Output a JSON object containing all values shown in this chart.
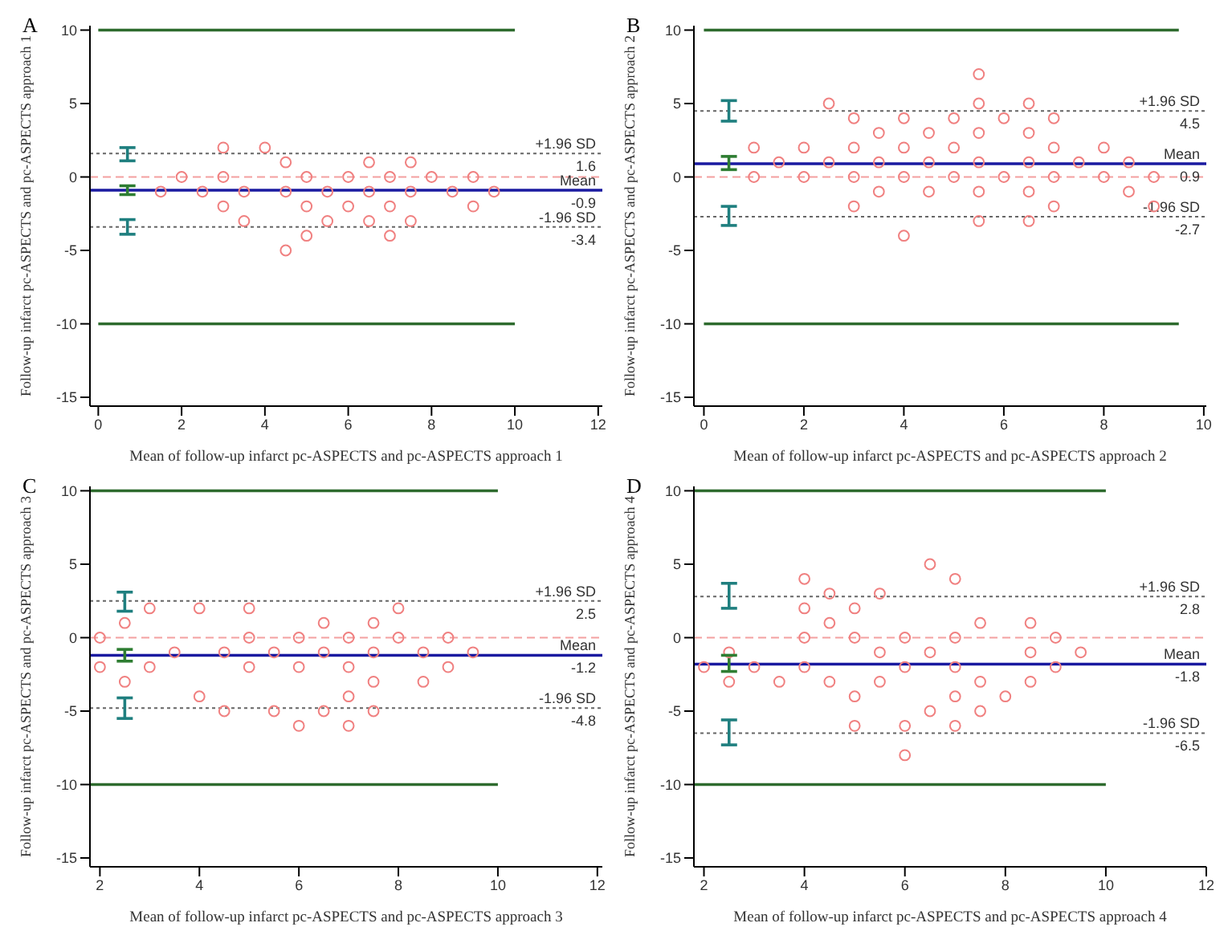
{
  "chart_data": [
    {
      "type": "scatter",
      "title": "A",
      "xlabel": "Mean of follow-up infarct pc-ASPECTS and pc-ASPECTS approach 1",
      "ylabel": "Follow-up infarct pc-ASPECTS and pc-ASPECTS approach 1",
      "xlim": [
        -0.2,
        12.1
      ],
      "xticks": [
        0,
        2,
        4,
        6,
        8,
        10,
        12
      ],
      "ylim": [
        -15.6,
        10.3
      ],
      "yticks": [
        -15,
        -10,
        -5,
        0,
        5,
        10
      ],
      "marker": "circle",
      "series": [
        {
          "type": "scatter",
          "color": "#f08080",
          "x": [
            3,
            4,
            4.5,
            6.5,
            7.5,
            2,
            3,
            5,
            6,
            7,
            8,
            9,
            1.5,
            2.5,
            3.5,
            4.5,
            5.5,
            6.5,
            7.5,
            8.5,
            9.5,
            3,
            5,
            6,
            7,
            9,
            3.5,
            5.5,
            6.5,
            7.5,
            5,
            7,
            4.5
          ],
          "values": [
            2,
            2,
            1,
            1,
            1,
            0,
            0,
            0,
            0,
            0,
            0,
            0,
            -1,
            -1,
            -1,
            -1,
            -1,
            -1,
            -1,
            -1,
            -1,
            -2,
            -2,
            -2,
            -2,
            -2,
            -3,
            -3,
            -3,
            -3,
            -4,
            -4,
            -5
          ]
        },
        {
          "type": "line",
          "marker": "none",
          "color": "#1f7f7f",
          "x": [
            0.7,
            0.7
          ],
          "values": [
            1.1,
            2.0
          ]
        },
        {
          "type": "line",
          "marker": "none",
          "color": "#1f7f7f",
          "x": [
            0.7,
            0.7
          ],
          "values": [
            -3.9,
            -2.9
          ]
        },
        {
          "type": "line",
          "marker": "none",
          "color": "#2e7d32",
          "x": [
            0.7,
            0.7
          ],
          "values": [
            -1.2,
            -0.6
          ]
        },
        {
          "type": "line",
          "marker": "none",
          "color": "#2e6b2e",
          "x": [
            0,
            10
          ],
          "values": [
            10,
            10
          ]
        },
        {
          "type": "line",
          "marker": "none",
          "color": "#2e6b2e",
          "x": [
            0,
            10
          ],
          "values": [
            -10,
            -10
          ]
        }
      ],
      "ref_lines": [
        {
          "axis": "y",
          "value": 0,
          "color": "#f4a0a0",
          "line_style": "dashed"
        },
        {
          "axis": "y",
          "value": 1.6,
          "label": "+1.96 SD",
          "color": "#666666",
          "line_style": "dotted"
        },
        {
          "axis": "y",
          "value": -0.9,
          "label": "Mean",
          "color": "#1a1aa0",
          "line_style": "solid"
        },
        {
          "axis": "y",
          "value": -3.4,
          "label": "-1.96 SD",
          "color": "#666666",
          "line_style": "dotted"
        }
      ],
      "annotations": [
        {
          "text": "1.6",
          "y": 1.6
        },
        {
          "text": "-0.9",
          "y": -0.9
        },
        {
          "text": "-3.4",
          "y": -3.4
        }
      ]
    },
    {
      "type": "scatter",
      "title": "B",
      "xlabel": "Mean of follow-up infarct pc-ASPECTS and pc-ASPECTS approach 2",
      "ylabel": "Follow-up infarct pc-ASPECTS and pc-ASPECTS approach 2",
      "xlim": [
        -0.2,
        10.05
      ],
      "xticks": [
        0,
        2,
        4,
        6,
        8,
        10
      ],
      "ylim": [
        -15.6,
        10.3
      ],
      "yticks": [
        -15,
        -10,
        -5,
        0,
        5,
        10
      ],
      "marker": "circle",
      "series": [
        {
          "type": "scatter",
          "color": "#f08080",
          "x": [
            5.5,
            2.5,
            5.5,
            6.5,
            3,
            4,
            5,
            6,
            7,
            3.5,
            4.5,
            5.5,
            6.5,
            1,
            2,
            3,
            4,
            5,
            7,
            8,
            1.5,
            2.5,
            3.5,
            4.5,
            5.5,
            6.5,
            7.5,
            8.5,
            1,
            2,
            3,
            4,
            5,
            6,
            7,
            8,
            9,
            3.5,
            4.5,
            5.5,
            6.5,
            8.5,
            3,
            7,
            9,
            5.5,
            6.5,
            4
          ],
          "values": [
            7,
            5,
            5,
            5,
            4,
            4,
            4,
            4,
            4,
            3,
            3,
            3,
            3,
            2,
            2,
            2,
            2,
            2,
            2,
            2,
            1,
            1,
            1,
            1,
            1,
            1,
            1,
            1,
            0,
            0,
            0,
            0,
            0,
            0,
            0,
            0,
            0,
            -1,
            -1,
            -1,
            -1,
            -1,
            -2,
            -2,
            -2,
            -3,
            -3,
            -4
          ]
        },
        {
          "type": "line",
          "marker": "none",
          "color": "#1f7f7f",
          "x": [
            0.5,
            0.5
          ],
          "values": [
            3.8,
            5.2
          ]
        },
        {
          "type": "line",
          "marker": "none",
          "color": "#1f7f7f",
          "x": [
            0.5,
            0.5
          ],
          "values": [
            -3.3,
            -2.0
          ]
        },
        {
          "type": "line",
          "marker": "none",
          "color": "#2e7d32",
          "x": [
            0.5,
            0.5
          ],
          "values": [
            0.5,
            1.4
          ]
        },
        {
          "type": "line",
          "marker": "none",
          "color": "#2e6b2e",
          "x": [
            0,
            9.5
          ],
          "values": [
            10,
            10
          ]
        },
        {
          "type": "line",
          "marker": "none",
          "color": "#2e6b2e",
          "x": [
            0,
            9.5
          ],
          "values": [
            -10,
            -10
          ]
        }
      ],
      "ref_lines": [
        {
          "axis": "y",
          "value": 0,
          "color": "#f4a0a0",
          "line_style": "dashed"
        },
        {
          "axis": "y",
          "value": 4.5,
          "label": "+1.96 SD",
          "color": "#666666",
          "line_style": "dotted"
        },
        {
          "axis": "y",
          "value": 0.9,
          "label": "Mean",
          "color": "#1a1aa0",
          "line_style": "solid"
        },
        {
          "axis": "y",
          "value": -2.7,
          "label": "-1.96 SD",
          "color": "#666666",
          "line_style": "dotted"
        }
      ],
      "annotations": [
        {
          "text": "4.5",
          "y": 4.5
        },
        {
          "text": "0.9",
          "y": 0.9
        },
        {
          "text": "-2.7",
          "y": -2.7
        }
      ]
    },
    {
      "type": "scatter",
      "title": "C",
      "xlabel": "Mean of follow-up infarct pc-ASPECTS and pc-ASPECTS approach 3",
      "ylabel": "Follow-up infarct pc-ASPECTS and pc-ASPECTS approach 3",
      "xlim": [
        1.8,
        12.1
      ],
      "xticks": [
        2,
        4,
        6,
        8,
        10,
        12
      ],
      "ylim": [
        -15.6,
        10.3
      ],
      "yticks": [
        -15,
        -10,
        -5,
        0,
        5,
        10
      ],
      "marker": "circle",
      "series": [
        {
          "type": "scatter",
          "color": "#f08080",
          "x": [
            3,
            4,
            5,
            8,
            2.5,
            6.5,
            7.5,
            2,
            5,
            6,
            7,
            8,
            9,
            3.5,
            4.5,
            5.5,
            6.5,
            7.5,
            8.5,
            9.5,
            2,
            3,
            5,
            6,
            7,
            9,
            2.5,
            7.5,
            8.5,
            4,
            7,
            4.5,
            5.5,
            6.5,
            7.5,
            6,
            7
          ],
          "values": [
            2,
            2,
            2,
            2,
            1,
            1,
            1,
            0,
            0,
            0,
            0,
            0,
            0,
            -1,
            -1,
            -1,
            -1,
            -1,
            -1,
            -1,
            -2,
            -2,
            -2,
            -2,
            -2,
            -2,
            -3,
            -3,
            -3,
            -4,
            -4,
            -5,
            -5,
            -5,
            -5,
            -6,
            -6
          ]
        },
        {
          "type": "line",
          "marker": "none",
          "color": "#1f7f7f",
          "x": [
            2.5,
            2.5
          ],
          "values": [
            1.8,
            3.1
          ]
        },
        {
          "type": "line",
          "marker": "none",
          "color": "#1f7f7f",
          "x": [
            2.5,
            2.5
          ],
          "values": [
            -5.5,
            -4.1
          ]
        },
        {
          "type": "line",
          "marker": "none",
          "color": "#2e7d32",
          "x": [
            2.5,
            2.5
          ],
          "values": [
            -1.6,
            -0.8
          ]
        },
        {
          "type": "line",
          "marker": "none",
          "color": "#2e6b2e",
          "x": [
            1.8,
            10
          ],
          "values": [
            10,
            10
          ]
        },
        {
          "type": "line",
          "marker": "none",
          "color": "#2e6b2e",
          "x": [
            1.8,
            10
          ],
          "values": [
            -10,
            -10
          ]
        }
      ],
      "ref_lines": [
        {
          "axis": "y",
          "value": 0,
          "color": "#f4a0a0",
          "line_style": "dashed"
        },
        {
          "axis": "y",
          "value": 2.5,
          "label": "+1.96 SD",
          "color": "#666666",
          "line_style": "dotted"
        },
        {
          "axis": "y",
          "value": -1.2,
          "label": "Mean",
          "color": "#1a1aa0",
          "line_style": "solid"
        },
        {
          "axis": "y",
          "value": -4.8,
          "label": "-1.96 SD",
          "color": "#666666",
          "line_style": "dotted"
        }
      ],
      "annotations": [
        {
          "text": "2.5",
          "y": 2.5
        },
        {
          "text": "-1.2",
          "y": -1.2
        },
        {
          "text": "-4.8",
          "y": -4.8
        }
      ]
    },
    {
      "type": "scatter",
      "title": "D",
      "xlabel": "Mean of follow-up infarct pc-ASPECTS and pc-ASPECTS approach 4",
      "ylabel": "Follow-up infarct pc-ASPECTS and pc-ASPECTS approach 4",
      "xlim": [
        1.8,
        12
      ],
      "xticks": [
        2,
        4,
        6,
        8,
        10,
        12
      ],
      "ylim": [
        -15.6,
        10.3
      ],
      "yticks": [
        -15,
        -10,
        -5,
        0,
        5,
        10
      ],
      "marker": "circle",
      "series": [
        {
          "type": "scatter",
          "color": "#f08080",
          "x": [
            6.5,
            4,
            7,
            4.5,
            5.5,
            4,
            5,
            4.5,
            7.5,
            8.5,
            4,
            5,
            6,
            7,
            9,
            2.5,
            5.5,
            6.5,
            8.5,
            9.5,
            2,
            3,
            4,
            6,
            7,
            9,
            2.5,
            3.5,
            4.5,
            5.5,
            7.5,
            8.5,
            5,
            7,
            8,
            6.5,
            7.5,
            5,
            6,
            7,
            6
          ],
          "values": [
            5,
            4,
            4,
            3,
            3,
            2,
            2,
            1,
            1,
            1,
            0,
            0,
            0,
            0,
            0,
            -1,
            -1,
            -1,
            -1,
            -1,
            -2,
            -2,
            -2,
            -2,
            -2,
            -2,
            -3,
            -3,
            -3,
            -3,
            -3,
            -3,
            -4,
            -4,
            -4,
            -5,
            -5,
            -6,
            -6,
            -6,
            -8
          ]
        },
        {
          "type": "line",
          "marker": "none",
          "color": "#1f7f7f",
          "x": [
            2.5,
            2.5
          ],
          "values": [
            2.0,
            3.7
          ]
        },
        {
          "type": "line",
          "marker": "none",
          "color": "#1f7f7f",
          "x": [
            2.5,
            2.5
          ],
          "values": [
            -7.3,
            -5.6
          ]
        },
        {
          "type": "line",
          "marker": "none",
          "color": "#2e7d32",
          "x": [
            2.5,
            2.5
          ],
          "values": [
            -2.3,
            -1.2
          ]
        },
        {
          "type": "line",
          "marker": "none",
          "color": "#2e6b2e",
          "x": [
            1.8,
            10
          ],
          "values": [
            10,
            10
          ]
        },
        {
          "type": "line",
          "marker": "none",
          "color": "#2e6b2e",
          "x": [
            1.8,
            10
          ],
          "values": [
            -10,
            -10
          ]
        }
      ],
      "ref_lines": [
        {
          "axis": "y",
          "value": 0,
          "color": "#f4a0a0",
          "line_style": "dashed"
        },
        {
          "axis": "y",
          "value": 2.8,
          "label": "+1.96 SD",
          "color": "#666666",
          "line_style": "dotted"
        },
        {
          "axis": "y",
          "value": -1.8,
          "label": "Mean",
          "color": "#1a1aa0",
          "line_style": "solid"
        },
        {
          "axis": "y",
          "value": -6.5,
          "label": "-1.96 SD",
          "color": "#666666",
          "line_style": "dotted"
        }
      ],
      "annotations": [
        {
          "text": "2.8",
          "y": 2.8
        },
        {
          "text": "-1.8",
          "y": -1.8
        },
        {
          "text": "-6.5",
          "y": -6.5
        }
      ]
    }
  ]
}
